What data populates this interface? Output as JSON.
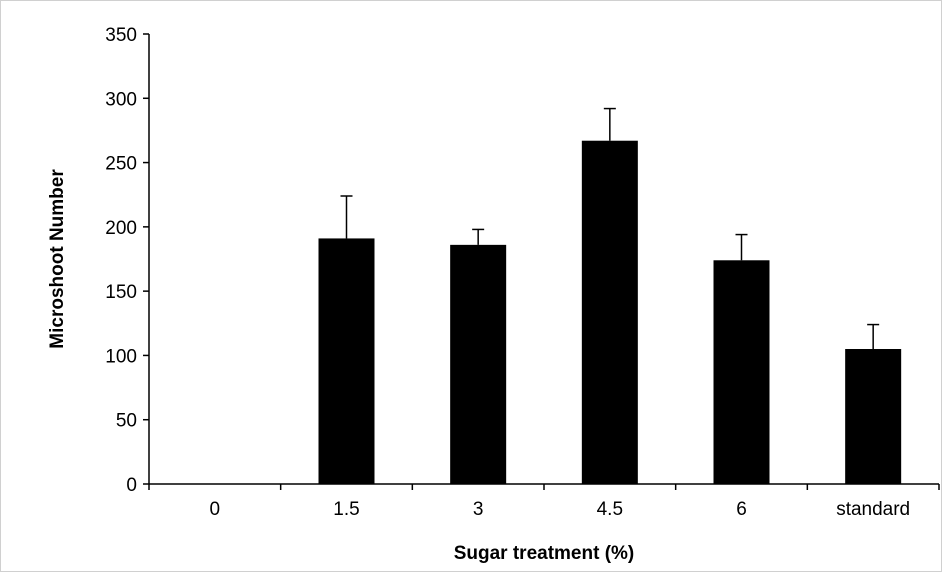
{
  "chart_data": {
    "type": "bar",
    "title": "",
    "xlabel": "Sugar treatment (%)",
    "ylabel": "Microshoot Number",
    "categories": [
      "0",
      "1.5",
      "3",
      "4.5",
      "6",
      "standard"
    ],
    "values": [
      0,
      191,
      186,
      267,
      174,
      105
    ],
    "errors": [
      0,
      33,
      12,
      25,
      20,
      19
    ],
    "ylim": [
      0,
      350
    ],
    "yticks": [
      0,
      50,
      100,
      150,
      200,
      250,
      300,
      350
    ],
    "grid": false,
    "legend": "none",
    "bar_color": "#000000"
  }
}
